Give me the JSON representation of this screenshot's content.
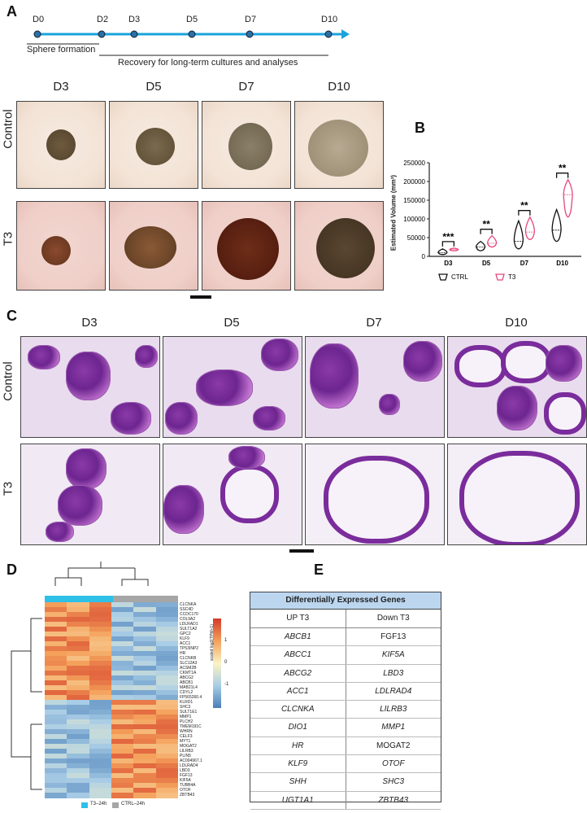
{
  "panels": {
    "A": "A",
    "B": "B",
    "C": "C",
    "D": "D",
    "E": "E"
  },
  "timeline": {
    "days": [
      "D0",
      "D2",
      "D3",
      "D5",
      "D7",
      "D10"
    ],
    "sphere_label": "Sphere formation",
    "recovery_label": "Recovery for long-term cultures and analyses",
    "color": "#1ba3dc"
  },
  "brightfield": {
    "columns": [
      "D3",
      "D5",
      "D7",
      "D10"
    ],
    "rows": [
      "Control",
      "T3"
    ]
  },
  "histology": {
    "columns": [
      "D3",
      "D5",
      "D7",
      "D10"
    ],
    "rows": [
      "Control",
      "T3"
    ]
  },
  "chart_data": {
    "type": "violin",
    "ylabel": "Estimated Volume (mm³)",
    "yticks": [
      "0",
      "50000",
      "100000",
      "150000",
      "200000",
      "250000"
    ],
    "ylim": [
      0,
      250000
    ],
    "categories": [
      "D3",
      "D5",
      "D7",
      "D10"
    ],
    "series": [
      {
        "name": "CTRL",
        "color": "#111111",
        "median": [
          10000,
          25000,
          40000,
          70000
        ],
        "min": [
          5000,
          15000,
          20000,
          40000
        ],
        "max": [
          20000,
          40000,
          95000,
          125000
        ]
      },
      {
        "name": "T3",
        "color": "#e8457a",
        "median": [
          18000,
          35000,
          65000,
          165000
        ],
        "min": [
          15000,
          25000,
          45000,
          105000
        ],
        "max": [
          22000,
          55000,
          105000,
          205000
        ]
      }
    ],
    "significance": [
      "***",
      "**",
      "**",
      "**"
    ],
    "legend": [
      "CTRL",
      "T3"
    ]
  },
  "heatmap": {
    "colorbar_title": "scaled log2(TPM+1)",
    "colorbar_ticks": [
      "1",
      "0",
      "-1"
    ],
    "legend": [
      {
        "label": "T3–24h",
        "color": "#2fc0e8"
      },
      {
        "label": "CTRL–24h",
        "color": "#a6a6a6"
      }
    ],
    "genes": [
      "CLCNKA",
      "SSC4D",
      "CCDC170",
      "COL9A2",
      "LDLRAD1",
      "SULT1A2",
      "GPC2",
      "KLF9",
      "ACC1",
      "TP53INP2",
      "HR",
      "CLCNKB",
      "SLC12A3",
      "ACSM2B",
      "CKMT1A",
      "ABCG2",
      "ABCB1",
      "MAB21L4",
      "CDYL2",
      "FP565260.4",
      "KLRD1",
      "SHC3",
      "SULT1E1",
      "MMP1",
      "PLCH2",
      "TMEM191C",
      "WHRN",
      "CELF3",
      "MYT1",
      "MOGAT2",
      "LILRB3",
      "PLIN5",
      "AC004967.1",
      "LDLRAD4",
      "LBD3",
      "FGF13",
      "KIF5A",
      "TUBB4A",
      "OTOF",
      "ZBTB43"
    ]
  },
  "deg_table": {
    "title": "Differentially Expressed Genes",
    "up_header": "UP T3",
    "down_header": "Down T3",
    "up": [
      "ABCB1",
      "ABCC1",
      "ABCG2",
      "ACC1",
      "CLCNKA",
      "DIO1",
      "HR",
      "KLF9",
      "SHH",
      "UGT1A1"
    ],
    "down": [
      "FGF13",
      "KIF5A",
      "LBD3",
      "LDLRAD4",
      "LILRB3",
      "MMP1",
      "MOGAT2",
      "OTOF",
      "SHC3",
      "ZBTB43"
    ],
    "header_color": "#bcd6f0"
  }
}
